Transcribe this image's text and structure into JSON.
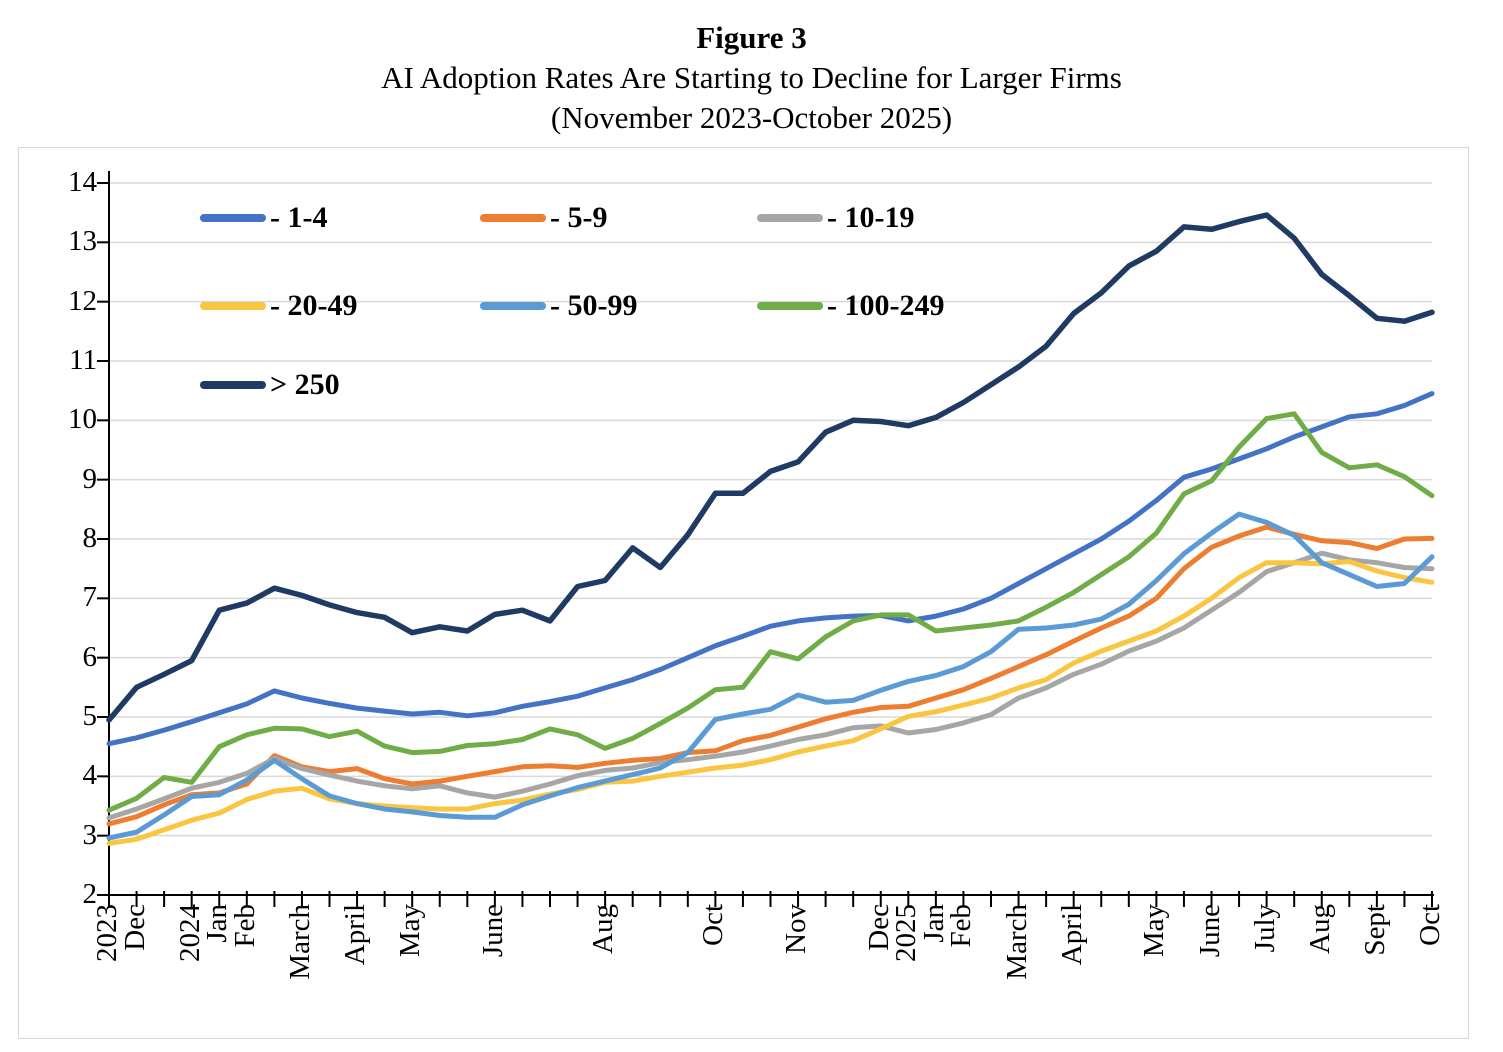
{
  "title": {
    "line1": "Figure 3",
    "line2": "AI Adoption Rates Are Starting to Decline for Larger Firms",
    "line3": "(November 2023-October 2025)"
  },
  "legend": [
    {
      "label": "- 1-4",
      "color": "#4472C4"
    },
    {
      "label": "- 5-9",
      "color": "#ED7D31"
    },
    {
      "label": "- 10-19",
      "color": "#A6A6A6"
    },
    {
      "label": "- 20-49",
      "color": "#FAC642"
    },
    {
      "label": "- 50-99",
      "color": "#5B9BD5"
    },
    {
      "label": "- 100-249",
      "color": "#70AD47"
    },
    {
      "label": "> 250",
      "color": "#1F3A63"
    }
  ],
  "chart_data": {
    "type": "line",
    "title": "AI Adoption Rates Are Starting to Decline for Larger Firms (November 2023-October 2025)",
    "grid": true,
    "legend_position": "inside-top-left",
    "y_axis": {
      "min": 2,
      "max": 14,
      "step": 1
    },
    "x_axis": {
      "n_points": 49,
      "description": "Biweekly periods, November 2023 - October 2025",
      "tick_labels": [
        {
          "index": 0,
          "label": "2023"
        },
        {
          "index": 1,
          "label": "Dec"
        },
        {
          "index": 3,
          "label": "2024"
        },
        {
          "index": 4,
          "label": "Jan"
        },
        {
          "index": 5,
          "label": "Feb"
        },
        {
          "index": 7,
          "label": "March"
        },
        {
          "index": 9,
          "label": "April"
        },
        {
          "index": 11,
          "label": "May"
        },
        {
          "index": 14,
          "label": "June"
        },
        {
          "index": 18,
          "label": "Aug"
        },
        {
          "index": 22,
          "label": "Oct"
        },
        {
          "index": 25,
          "label": "Nov"
        },
        {
          "index": 28,
          "label": "Dec"
        },
        {
          "index": 29,
          "label": "2025"
        },
        {
          "index": 30,
          "label": "Jan"
        },
        {
          "index": 31,
          "label": "Feb"
        },
        {
          "index": 33,
          "label": "March"
        },
        {
          "index": 35,
          "label": "April"
        },
        {
          "index": 38,
          "label": "May"
        },
        {
          "index": 40,
          "label": "June"
        },
        {
          "index": 42,
          "label": "July"
        },
        {
          "index": 44,
          "label": "Aug"
        },
        {
          "index": 46,
          "label": "Sept"
        },
        {
          "index": 48,
          "label": "Oct"
        }
      ]
    },
    "series": [
      {
        "name": "1-4",
        "color": "#4472C4",
        "values": [
          4.55,
          4.65,
          4.78,
          4.92,
          5.07,
          5.22,
          5.44,
          5.32,
          5.23,
          5.15,
          5.1,
          5.05,
          5.08,
          5.02,
          5.07,
          5.18,
          5.26,
          5.35,
          5.49,
          5.63,
          5.8,
          6.0,
          6.2,
          6.36,
          6.53,
          6.62,
          6.67,
          6.7,
          6.71,
          6.62,
          6.7,
          6.82,
          7.0,
          7.25,
          7.5,
          7.75,
          8.0,
          8.3,
          8.65,
          9.04,
          9.18,
          9.35,
          9.52,
          9.72,
          9.89,
          10.06,
          10.11,
          10.25,
          10.45
        ]
      },
      {
        "name": "5-9",
        "color": "#ED7D31",
        "values": [
          3.2,
          3.32,
          3.52,
          3.69,
          3.72,
          3.87,
          4.35,
          4.16,
          4.08,
          4.13,
          3.96,
          3.87,
          3.92,
          4.0,
          4.08,
          4.16,
          4.18,
          4.15,
          4.22,
          4.27,
          4.3,
          4.4,
          4.43,
          4.6,
          4.69,
          4.83,
          4.97,
          5.08,
          5.16,
          5.18,
          5.32,
          5.46,
          5.65,
          5.85,
          6.05,
          6.28,
          6.5,
          6.7,
          7.0,
          7.5,
          7.86,
          8.05,
          8.2,
          8.08,
          7.97,
          7.94,
          7.84,
          8.0,
          8.01
        ]
      },
      {
        "name": "10-19",
        "color": "#A6A6A6",
        "values": [
          3.3,
          3.45,
          3.62,
          3.8,
          3.9,
          4.05,
          4.3,
          4.13,
          4.02,
          3.92,
          3.84,
          3.79,
          3.84,
          3.72,
          3.65,
          3.75,
          3.87,
          4.01,
          4.1,
          4.14,
          4.23,
          4.28,
          4.34,
          4.41,
          4.51,
          4.62,
          4.7,
          4.82,
          4.85,
          4.73,
          4.79,
          4.9,
          5.04,
          5.32,
          5.49,
          5.72,
          5.89,
          6.11,
          6.28,
          6.5,
          6.8,
          7.1,
          7.45,
          7.6,
          7.76,
          7.65,
          7.6,
          7.52,
          7.5
        ]
      },
      {
        "name": "20-49",
        "color": "#FAC642",
        "values": [
          2.87,
          2.94,
          3.1,
          3.26,
          3.38,
          3.61,
          3.75,
          3.8,
          3.62,
          3.54,
          3.5,
          3.47,
          3.45,
          3.45,
          3.54,
          3.6,
          3.7,
          3.78,
          3.9,
          3.92,
          4.0,
          4.07,
          4.14,
          4.19,
          4.28,
          4.41,
          4.51,
          4.6,
          4.8,
          5.01,
          5.09,
          5.2,
          5.32,
          5.49,
          5.63,
          5.91,
          6.11,
          6.28,
          6.45,
          6.7,
          7.0,
          7.35,
          7.6,
          7.6,
          7.58,
          7.62,
          7.46,
          7.35,
          7.27
        ]
      },
      {
        "name": "50-99",
        "color": "#5B9BD5",
        "values": [
          2.96,
          3.06,
          3.35,
          3.66,
          3.69,
          3.94,
          4.27,
          3.96,
          3.67,
          3.54,
          3.45,
          3.4,
          3.34,
          3.31,
          3.31,
          3.52,
          3.67,
          3.81,
          3.92,
          4.03,
          4.14,
          4.4,
          4.96,
          5.05,
          5.13,
          5.37,
          5.25,
          5.28,
          5.45,
          5.6,
          5.7,
          5.85,
          6.1,
          6.48,
          6.5,
          6.55,
          6.65,
          6.9,
          7.3,
          7.75,
          8.1,
          8.42,
          8.28,
          8.06,
          7.6,
          7.4,
          7.2,
          7.25,
          7.7
        ]
      },
      {
        "name": "100-249",
        "color": "#70AD47",
        "values": [
          3.43,
          3.63,
          3.98,
          3.9,
          4.5,
          4.7,
          4.81,
          4.8,
          4.67,
          4.76,
          4.51,
          4.4,
          4.42,
          4.52,
          4.55,
          4.62,
          4.8,
          4.7,
          4.47,
          4.64,
          4.89,
          5.15,
          5.46,
          5.5,
          6.1,
          5.98,
          6.35,
          6.62,
          6.72,
          6.72,
          6.45,
          6.5,
          6.55,
          6.62,
          6.85,
          7.1,
          7.4,
          7.7,
          8.1,
          8.76,
          8.98,
          9.55,
          10.03,
          10.11,
          9.46,
          9.2,
          9.25,
          9.05,
          8.73
        ]
      },
      {
        "name": "> 250",
        "color": "#1F3A63",
        "values": [
          4.95,
          5.5,
          5.72,
          5.95,
          6.8,
          6.92,
          7.17,
          7.05,
          6.89,
          6.76,
          6.68,
          6.42,
          6.52,
          6.45,
          6.73,
          6.8,
          6.62,
          7.2,
          7.3,
          7.85,
          7.52,
          8.07,
          8.77,
          8.77,
          9.14,
          9.3,
          9.8,
          10.0,
          9.98,
          9.91,
          10.05,
          10.3,
          10.6,
          10.9,
          11.25,
          11.8,
          12.15,
          12.6,
          12.85,
          13.26,
          13.22,
          13.35,
          13.46,
          13.07,
          12.46,
          12.1,
          11.72,
          11.67,
          11.82
        ]
      }
    ]
  }
}
